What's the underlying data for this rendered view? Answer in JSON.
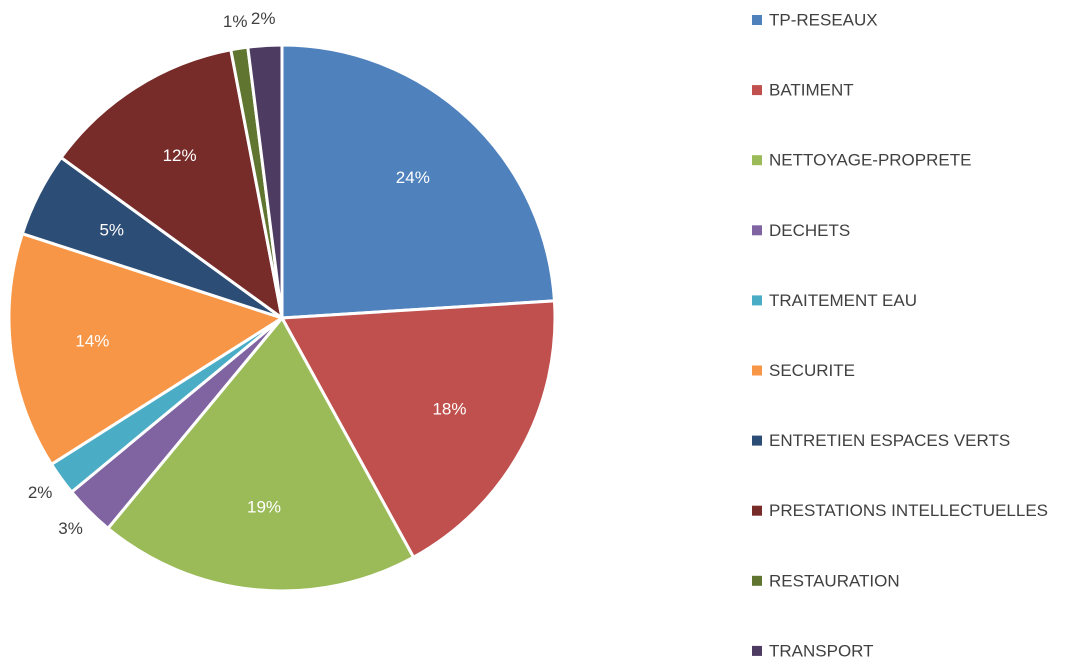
{
  "chart_data": {
    "type": "pie",
    "categories": [
      "TP-RESEAUX",
      "BATIMENT",
      "NETTOYAGE-PROPRETE",
      "DECHETS",
      "TRAITEMENT EAU",
      "SECURITE",
      "ENTRETIEN ESPACES VERTS",
      "PRESTATIONS INTELLECTUELLES",
      "RESTAURATION",
      "TRANSPORT"
    ],
    "values": [
      24,
      18,
      19,
      3,
      2,
      14,
      5,
      12,
      1,
      2
    ],
    "value_labels": [
      "24%",
      "18%",
      "19%",
      "3%",
      "2%",
      "14%",
      "5%",
      "12%",
      "1%",
      "2%"
    ],
    "colors": [
      "#4f81bd",
      "#c0504d",
      "#9bbb59",
      "#8064a2",
      "#4bacc6",
      "#f79646",
      "#2c4d75",
      "#772c2a",
      "#5f7530",
      "#4d3b62"
    ],
    "legend": "right"
  }
}
